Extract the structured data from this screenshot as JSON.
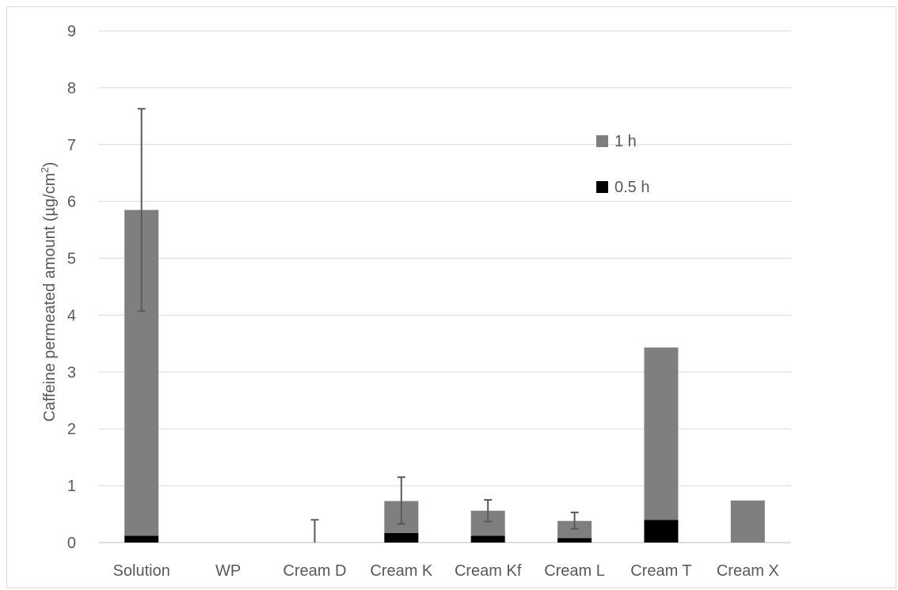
{
  "chart_data": {
    "type": "bar",
    "stacked": true,
    "categories": [
      "Solution",
      "WP",
      "Cream D",
      "Cream K",
      "Cream Kf",
      "Cream L",
      "Cream T",
      "Cream X"
    ],
    "ylabel_main": "Caffeine permeated amount (µg/cm",
    "ylabel_sup": "2",
    "ylabel_end": ")",
    "ylim": [
      0,
      9
    ],
    "yticks": [
      0,
      1,
      2,
      3,
      4,
      5,
      6,
      7,
      8,
      9
    ],
    "grid": true,
    "legend_position": "upper-right inside plot",
    "series": [
      {
        "name": "0.5 h",
        "color": "#000000",
        "values": [
          0.12,
          0,
          0,
          0.17,
          0.12,
          0.08,
          0.4,
          0
        ]
      },
      {
        "name": "1 h",
        "color": "#7f7f7f",
        "values": [
          5.73,
          0,
          0,
          0.56,
          0.44,
          0.3,
          3.03,
          0.74
        ]
      }
    ],
    "totals": [
      5.85,
      0,
      0,
      0.73,
      0.56,
      0.38,
      3.43,
      0.74
    ],
    "error_bars": [
      {
        "category": "Solution",
        "low": 4.07,
        "high": 7.63
      },
      {
        "category": "Cream D",
        "low": 0,
        "high": 0.4
      },
      {
        "category": "Cream K",
        "low": 0.33,
        "high": 1.15
      },
      {
        "category": "Cream Kf",
        "low": 0.37,
        "high": 0.75
      },
      {
        "category": "Cream L",
        "low": 0.24,
        "high": 0.53
      }
    ]
  }
}
